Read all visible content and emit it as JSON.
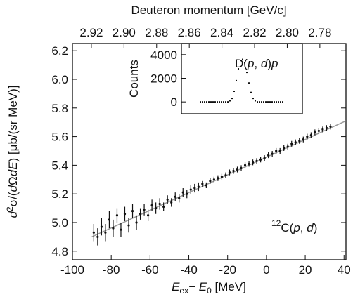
{
  "chart_data": {
    "type": "errorbar",
    "title": "Deuteron momentum [GeV/c]",
    "xlabel": [
      "E",
      "ex",
      "− E",
      "0",
      " [MeV]"
    ],
    "ylabel": [
      "d",
      "2",
      "σ/(",
      "d",
      "Ω",
      "d",
      "E",
      ") [μb/(sr MeV)]"
    ],
    "annotation": [
      "12",
      "C(",
      "p",
      ", ",
      "d",
      ")"
    ],
    "xlim": [
      -100,
      41
    ],
    "xticks": [
      -100,
      -80,
      -60,
      -40,
      -20,
      0,
      20,
      40
    ],
    "ylim": [
      4.74,
      6.25
    ],
    "yticks": [
      {
        "value": 6.2,
        "label": "6.2"
      },
      {
        "value": 6.0,
        "label": "6.0"
      },
      5.8,
      5.6,
      5.4,
      5.2,
      {
        "value": 5.0,
        "label": "5.0"
      },
      4.8
    ],
    "x2lim": [
      2.9316,
      2.764
    ],
    "x2ticks": [
      2.92,
      {
        "value": 2.9,
        "label": "2.90"
      },
      2.88,
      2.86,
      2.84,
      2.82,
      {
        "value": 2.8,
        "label": "2.80"
      },
      2.78
    ],
    "series": [
      {
        "color": "#111111",
        "x": [
          -89,
          -87,
          -85,
          -83,
          -81,
          -79,
          -77,
          -75,
          -73,
          -71,
          -69,
          -67,
          -65,
          -63,
          -61,
          -59,
          -57,
          -55,
          -53,
          -51,
          -49,
          -47,
          -45,
          -43,
          -41,
          -39,
          -37,
          -35,
          -33,
          -31,
          -29,
          -27,
          -25,
          -23,
          -21,
          -19,
          -17,
          -15,
          -13,
          -11,
          -9,
          -7,
          -5,
          -3,
          -1,
          1,
          3,
          5,
          7,
          9,
          11,
          13,
          15,
          17,
          19,
          21,
          23,
          25,
          27,
          29,
          31,
          33
        ],
        "values": [
          4.93,
          4.9,
          4.97,
          4.93,
          5.02,
          4.96,
          5.05,
          4.95,
          5.06,
          4.98,
          5.08,
          5.0,
          5.06,
          5.09,
          5.05,
          5.12,
          5.1,
          5.13,
          5.11,
          5.16,
          5.14,
          5.18,
          5.17,
          5.21,
          5.2,
          5.23,
          5.24,
          5.25,
          5.27,
          5.26,
          5.29,
          5.3,
          5.31,
          5.32,
          5.33,
          5.35,
          5.36,
          5.37,
          5.38,
          5.4,
          5.41,
          5.42,
          5.43,
          5.44,
          5.45,
          5.47,
          5.48,
          5.5,
          5.5,
          5.52,
          5.53,
          5.55,
          5.56,
          5.57,
          5.58,
          5.6,
          5.61,
          5.63,
          5.64,
          5.65,
          5.66,
          5.67
        ],
        "errors": [
          0.06,
          0.06,
          0.06,
          0.06,
          0.06,
          0.06,
          0.05,
          0.05,
          0.05,
          0.05,
          0.05,
          0.05,
          0.04,
          0.04,
          0.04,
          0.04,
          0.04,
          0.04,
          0.03,
          0.03,
          0.03,
          0.03,
          0.03,
          0.03,
          0.03,
          0.03,
          0.03,
          0.03,
          0.02,
          0.02,
          0.02,
          0.02,
          0.02,
          0.02,
          0.02,
          0.02,
          0.02,
          0.02,
          0.02,
          0.02,
          0.02,
          0.02,
          0.02,
          0.02,
          0.02,
          0.02,
          0.02,
          0.02,
          0.02,
          0.02,
          0.02,
          0.02,
          0.02,
          0.02,
          0.02,
          0.02,
          0.02,
          0.02,
          0.02,
          0.02,
          0.02,
          0.02
        ]
      }
    ],
    "fit": {
      "color": "#9a9a9a",
      "x": [
        -90,
        41
      ],
      "y": [
        4.9,
        5.71
      ]
    },
    "inset": {
      "label": [
        "D(",
        "p",
        ", ",
        "d",
        ")",
        "p"
      ],
      "ylabel": "Counts",
      "ylim": [
        -1000,
        4940
      ],
      "yticks": [
        0,
        2000,
        4000
      ],
      "values": [
        0,
        0,
        0,
        0,
        0,
        0,
        0,
        0,
        0,
        0,
        0,
        0,
        0,
        0,
        100,
        300,
        900,
        1800,
        2800,
        3500,
        3600,
        3300,
        2500,
        1600,
        800,
        300,
        100,
        0,
        0,
        0,
        0,
        0,
        0,
        0,
        0,
        0,
        0,
        0,
        0,
        0
      ]
    }
  }
}
